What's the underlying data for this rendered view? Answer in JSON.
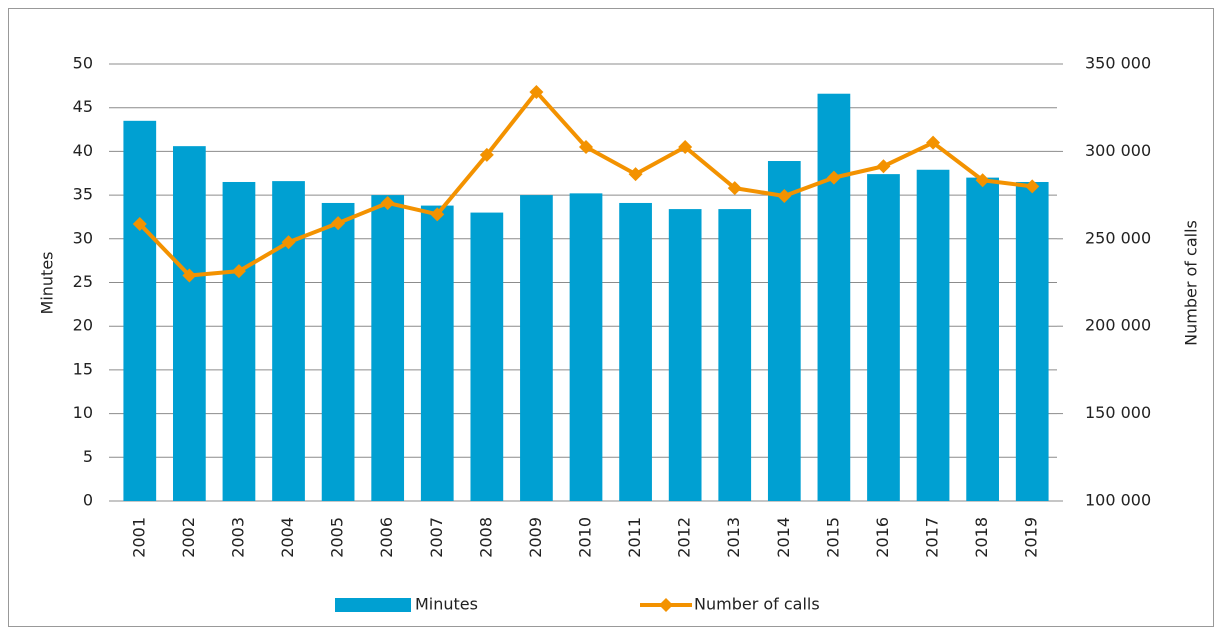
{
  "chart_data": {
    "type": "bar-line",
    "categories": [
      "2001",
      "2002",
      "2003",
      "2004",
      "2005",
      "2006",
      "2007",
      "2008",
      "2009",
      "2010",
      "2011",
      "2012",
      "2013",
      "2014",
      "2015",
      "2016",
      "2017",
      "2018",
      "2019"
    ],
    "ylabel": "Minutes",
    "y2label": "Number of calls",
    "series": [
      {
        "name": "Minutes",
        "type": "bar",
        "color": "#00a0d2",
        "values": [
          43.5,
          40.6,
          36.5,
          36.6,
          34.1,
          35.0,
          33.8,
          33.0,
          35.0,
          35.2,
          34.1,
          33.4,
          33.4,
          38.9,
          46.6,
          37.4,
          37.9,
          37.0,
          36.5
        ]
      },
      {
        "name": "Number of calls",
        "type": "line",
        "axis": "y2",
        "color": "#f39200",
        "values": [
          258500,
          229000,
          231500,
          248000,
          259000,
          270500,
          264000,
          298000,
          334000,
          302500,
          287000,
          302500,
          279000,
          274500,
          285000,
          291500,
          305000,
          283500,
          280000
        ]
      }
    ],
    "ylim": [
      0,
      50
    ],
    "yticks": [
      0,
      5,
      10,
      15,
      20,
      25,
      30,
      35,
      40,
      45,
      50
    ],
    "y2lim": [
      100000,
      350000
    ],
    "y2ticks": [
      {
        "value": 100000,
        "label": "100 000"
      },
      {
        "value": 150000,
        "label": "150 000"
      },
      {
        "value": 200000,
        "label": "200 000"
      },
      {
        "value": 250000,
        "label": "250 000"
      },
      {
        "value": 300000,
        "label": "300 000"
      },
      {
        "value": 350000,
        "label": "350 000"
      }
    ],
    "grid": true,
    "legend": "bottom"
  }
}
